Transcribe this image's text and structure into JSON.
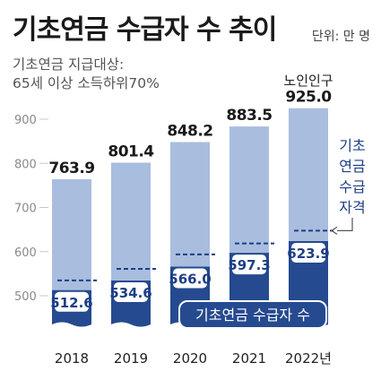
{
  "title": "기초연금 수급자 수 추이",
  "unit": "단위: 만 명",
  "subtitle": [
    "기초연금 지급대상:",
    "65세 이상 소득하위70%"
  ],
  "colors": {
    "elderly_bar": "#a9bddf",
    "recipient_bar": "#254a8f",
    "dashed_line": "#1e3f86",
    "axis_text": "#8a8a8a",
    "value_text": "#1a1a1a",
    "label_text": "#1e3f86"
  },
  "chart_data": {
    "type": "bar",
    "categories": [
      "2018",
      "2019",
      "2020",
      "2021",
      "2022년"
    ],
    "series": [
      {
        "name": "노인인구",
        "values": [
          763.9,
          801.4,
          848.2,
          883.5,
          925.0
        ]
      },
      {
        "name": "기초연금 수급자 수",
        "values": [
          512.6,
          534.6,
          566.0,
          597.3,
          623.9
        ]
      },
      {
        "name": "기초연금 수급자격",
        "values": [
          534.7,
          561.0,
          593.7,
          618.5,
          647.5
        ]
      }
    ],
    "value_labels_elderly": [
      "763.9",
      "801.4",
      "848.2",
      "883.5",
      "925.0"
    ],
    "value_labels_recipient": [
      "512.6",
      "534.6",
      "566.0",
      "597.3",
      "623.9"
    ],
    "y_ticks": [
      "500",
      "600",
      "700",
      "800",
      "900"
    ],
    "y_tick_values": [
      500,
      600,
      700,
      800,
      900
    ],
    "ylim": [
      430,
      940
    ],
    "elderly_label": "노인인구",
    "eligibility_label": [
      "기초",
      "연금",
      "수급",
      "자격"
    ],
    "recipient_label": "기초연금 수급자 수"
  }
}
